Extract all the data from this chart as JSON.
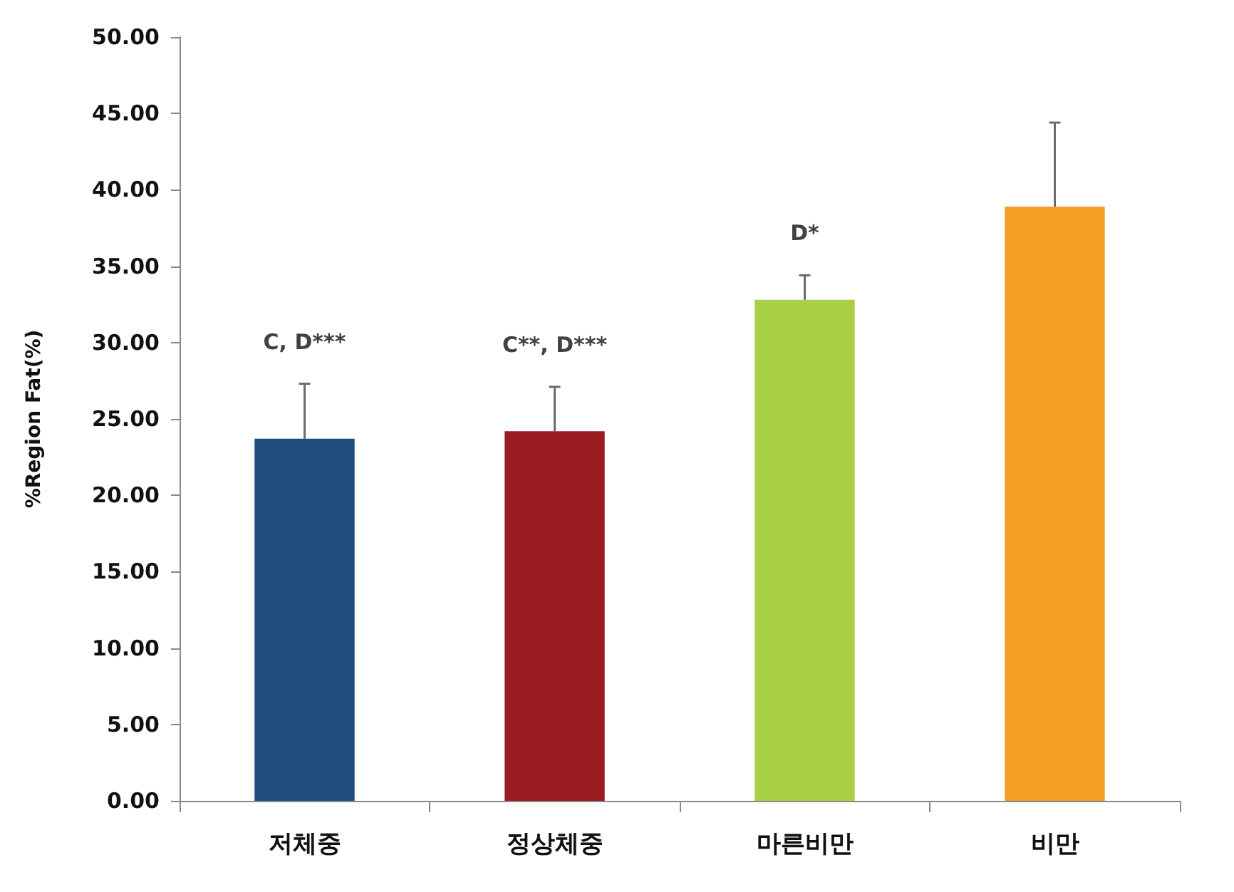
{
  "chart_data": {
    "type": "bar",
    "ylabel": "%Region Fat(%)",
    "categories": [
      "저체중",
      "정상체중",
      "마른비만",
      "비만"
    ],
    "values": [
      23.7,
      24.2,
      32.8,
      38.9
    ],
    "colors": [
      "#1f4e7e",
      "#9b1b21",
      "#a9d046",
      "#f3a024"
    ],
    "errors": [
      [
        23.7,
        27.3
      ],
      [
        24.2,
        27.1
      ],
      [
        32.8,
        34.4
      ],
      [
        38.9,
        44.4
      ]
    ],
    "ylim": [
      0,
      50
    ],
    "yticks": [
      {
        "value": 0,
        "label": "0.00"
      },
      {
        "value": 5,
        "label": "5.00"
      },
      {
        "value": 10,
        "label": "10.00"
      },
      {
        "value": 15,
        "label": "15.00"
      },
      {
        "value": 20,
        "label": "20.00"
      },
      {
        "value": 25,
        "label": "25.00"
      },
      {
        "value": 30,
        "label": "30.00"
      },
      {
        "value": 35,
        "label": "35.00"
      },
      {
        "value": 40,
        "label": "40.00"
      },
      {
        "value": 45,
        "label": "45.00"
      },
      {
        "value": 50,
        "label": "50.00"
      }
    ],
    "annotations": [
      "C, D***",
      "C**, D***",
      "D*"
    ],
    "grid": false
  }
}
